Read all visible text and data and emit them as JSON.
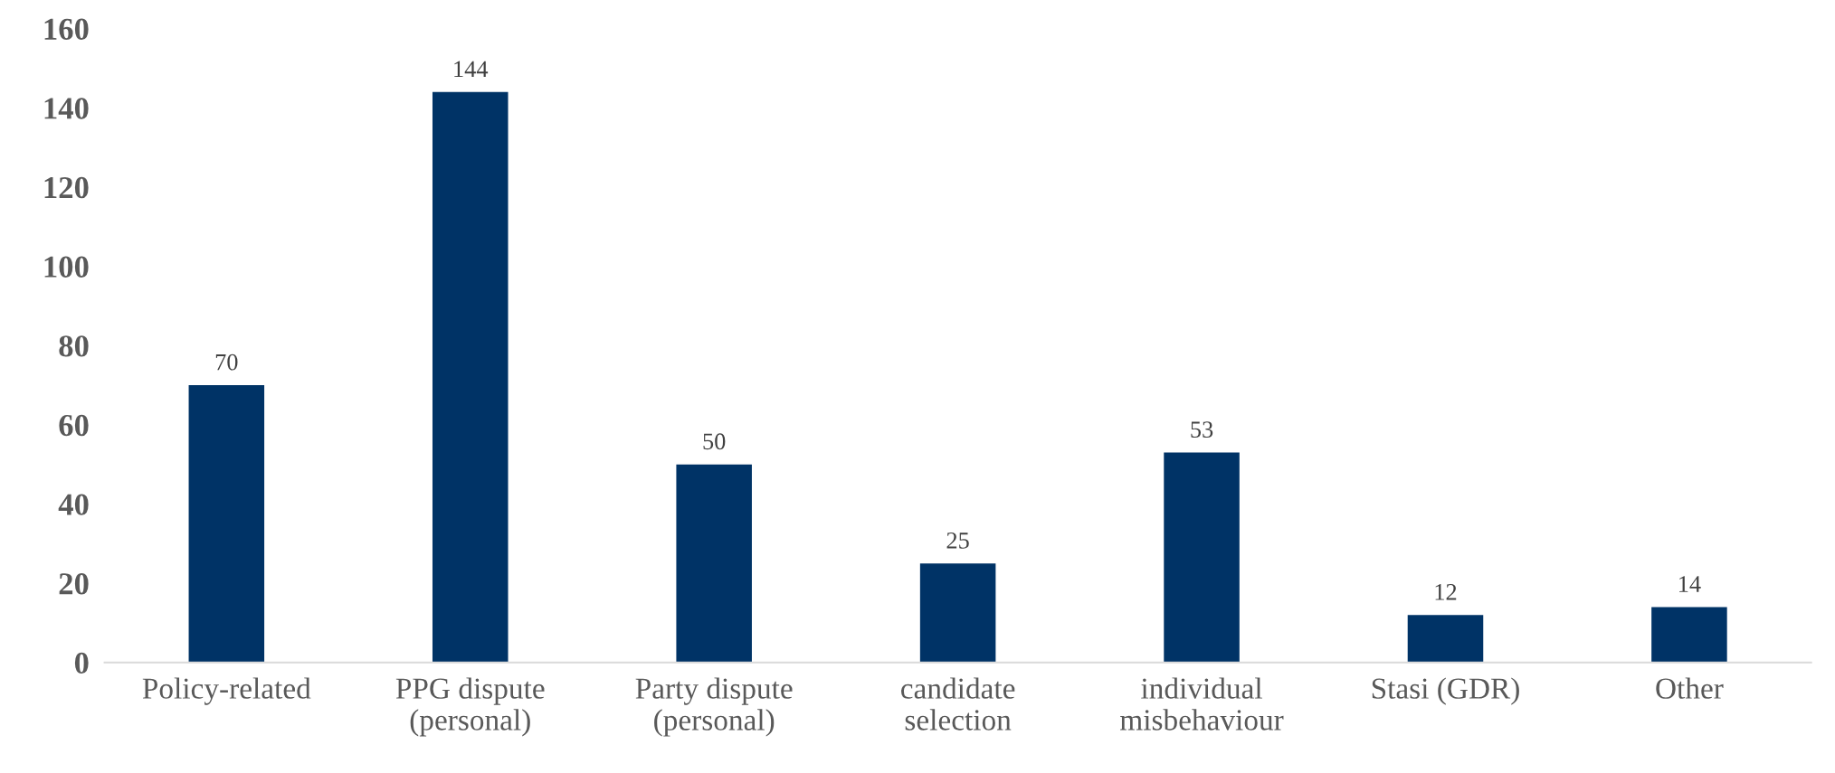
{
  "chart_data": {
    "type": "bar",
    "categories": [
      "Policy-related",
      "PPG dispute\n(personal)",
      "Party dispute\n(personal)",
      "candidate\nselection",
      "individual\nmisbehaviour",
      "Stasi (GDR)",
      "Other"
    ],
    "values": [
      70,
      144,
      50,
      25,
      53,
      12,
      14
    ],
    "color": "#003366",
    "ylim": [
      0,
      160
    ],
    "yticks": [
      0,
      20,
      40,
      60,
      80,
      100,
      120,
      140,
      160
    ],
    "data_labels": true,
    "grid": false,
    "legend": false
  }
}
